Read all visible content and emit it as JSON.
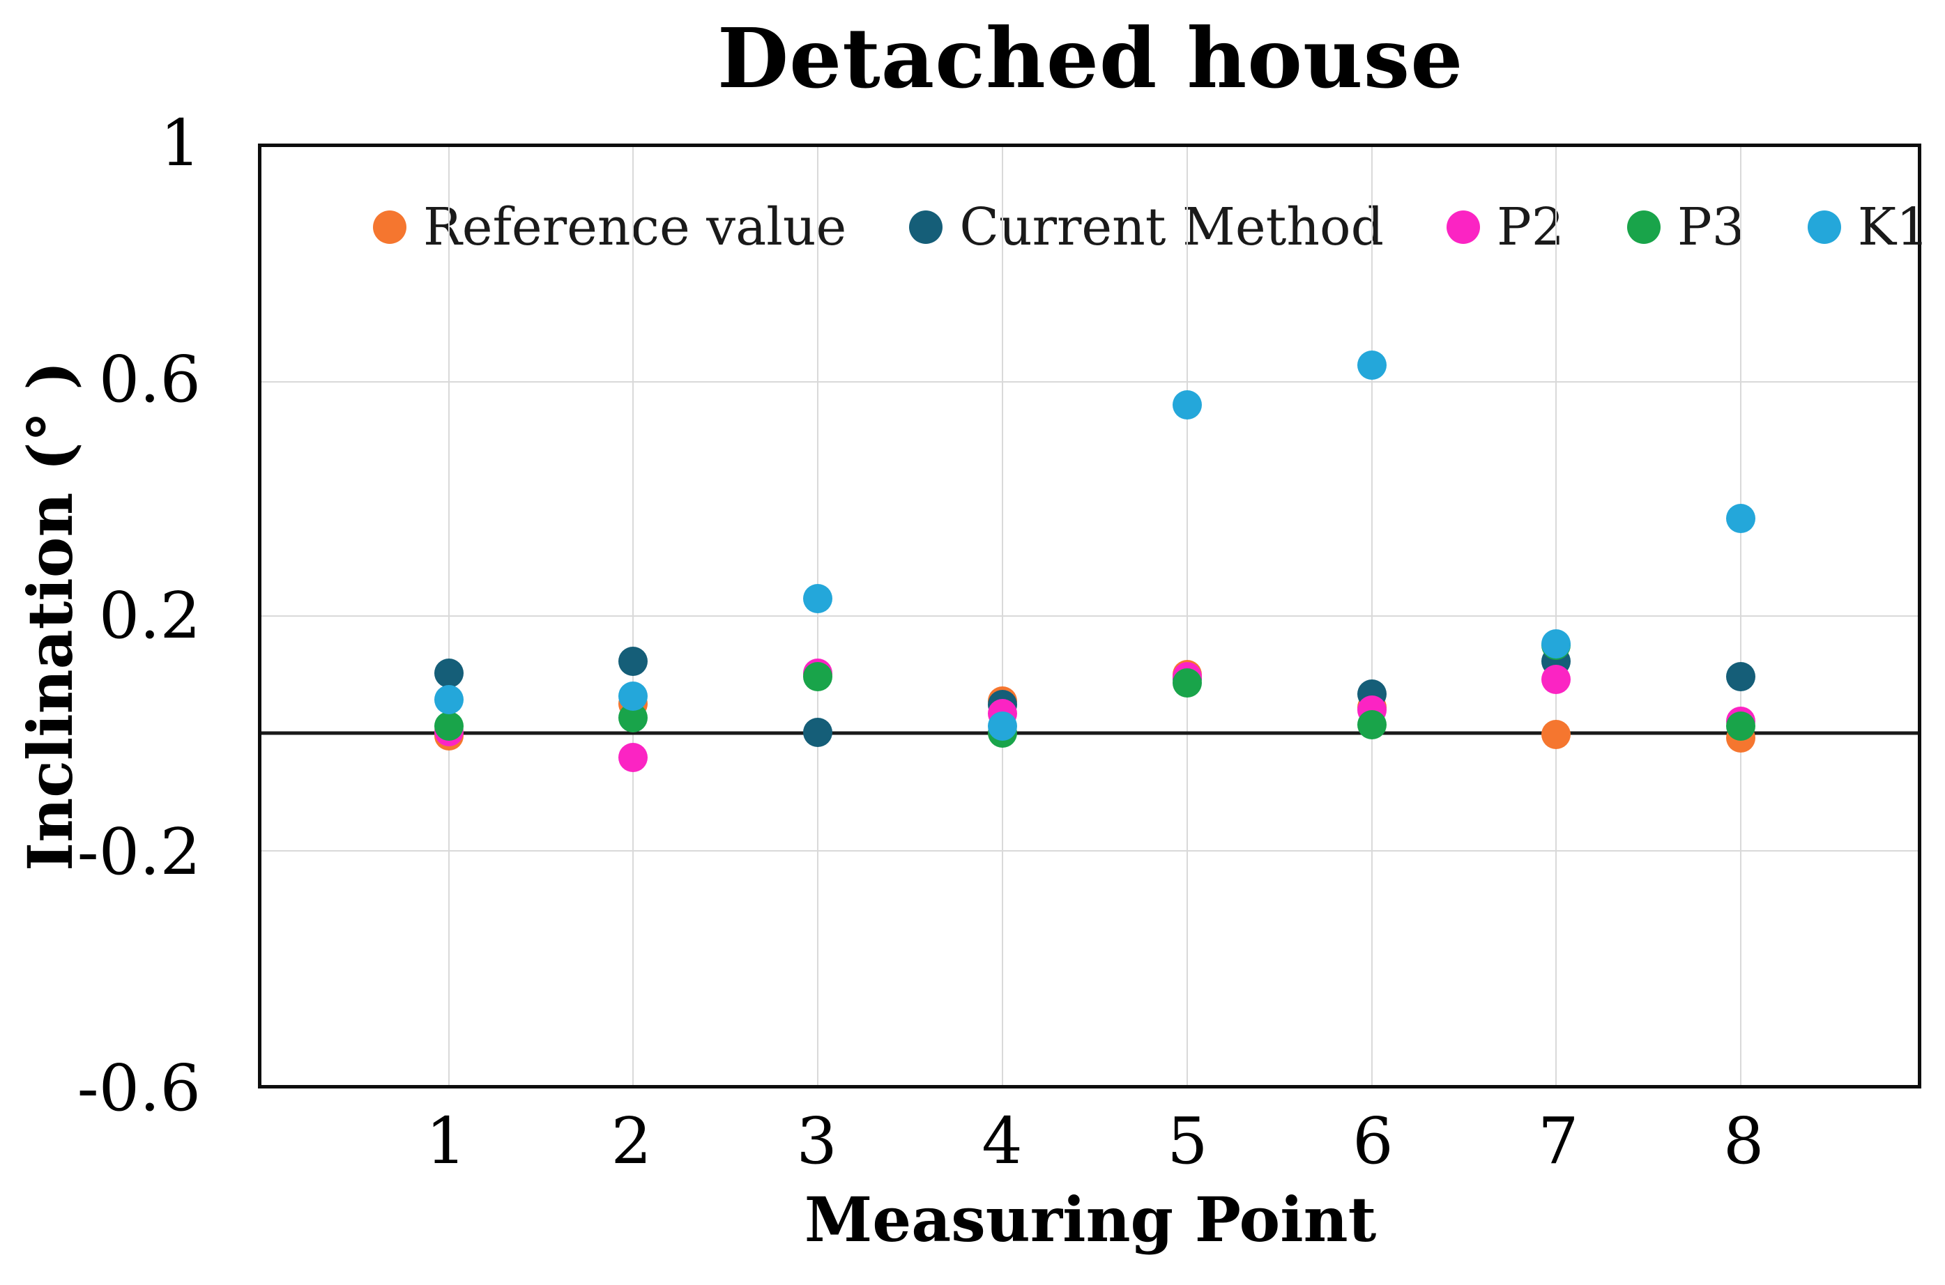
{
  "chart_data": {
    "type": "scatter",
    "title": "Detached house",
    "xlabel": "Measuring Point",
    "ylabel": "Inclination (° )",
    "x": [
      1,
      2,
      3,
      4,
      5,
      6,
      7,
      8
    ],
    "x_tick_labels": [
      "1",
      "2",
      "3",
      "4",
      "5",
      "6",
      "7",
      "8"
    ],
    "ylim": [
      -0.6,
      1.0
    ],
    "y_ticks": [
      {
        "value": 1,
        "label": "1"
      },
      {
        "value": 0.6,
        "label": "0.6"
      },
      {
        "value": 0.2,
        "label": "0.2"
      },
      {
        "value": -0.2,
        "label": "-0.2"
      },
      {
        "value": -0.6,
        "label": "-0.6"
      }
    ],
    "grid": true,
    "zero_line": true,
    "legend_position": "top-inside",
    "series": [
      {
        "name": "Reference value",
        "color": "#F5762F",
        "values": [
          -0.005,
          0.05,
          0.1,
          0.055,
          0.1,
          0.044,
          -0.002,
          -0.008
        ]
      },
      {
        "name": "Current Method",
        "color": "#155E78",
        "values": [
          0.103,
          0.123,
          0.002,
          0.049,
          0.093,
          0.067,
          0.123,
          0.097
        ]
      },
      {
        "name": "P2",
        "color": "#FB24C3",
        "values": [
          0.003,
          -0.041,
          0.103,
          0.034,
          0.096,
          0.04,
          0.092,
          0.02
        ]
      },
      {
        "name": "P3",
        "color": "#19A44A",
        "values": [
          0.012,
          0.027,
          0.096,
          0.0,
          0.086,
          0.014,
          0.15,
          0.012
        ]
      },
      {
        "name": "K1",
        "color": "#24A7DA",
        "values": [
          0.057,
          0.063,
          0.23,
          0.012,
          0.56,
          0.628,
          0.152,
          0.366
        ]
      }
    ]
  },
  "colors": {
    "gridline": "#d9d9d9",
    "axis_line": "#1a1a1a",
    "border": "#0d0d0d"
  }
}
